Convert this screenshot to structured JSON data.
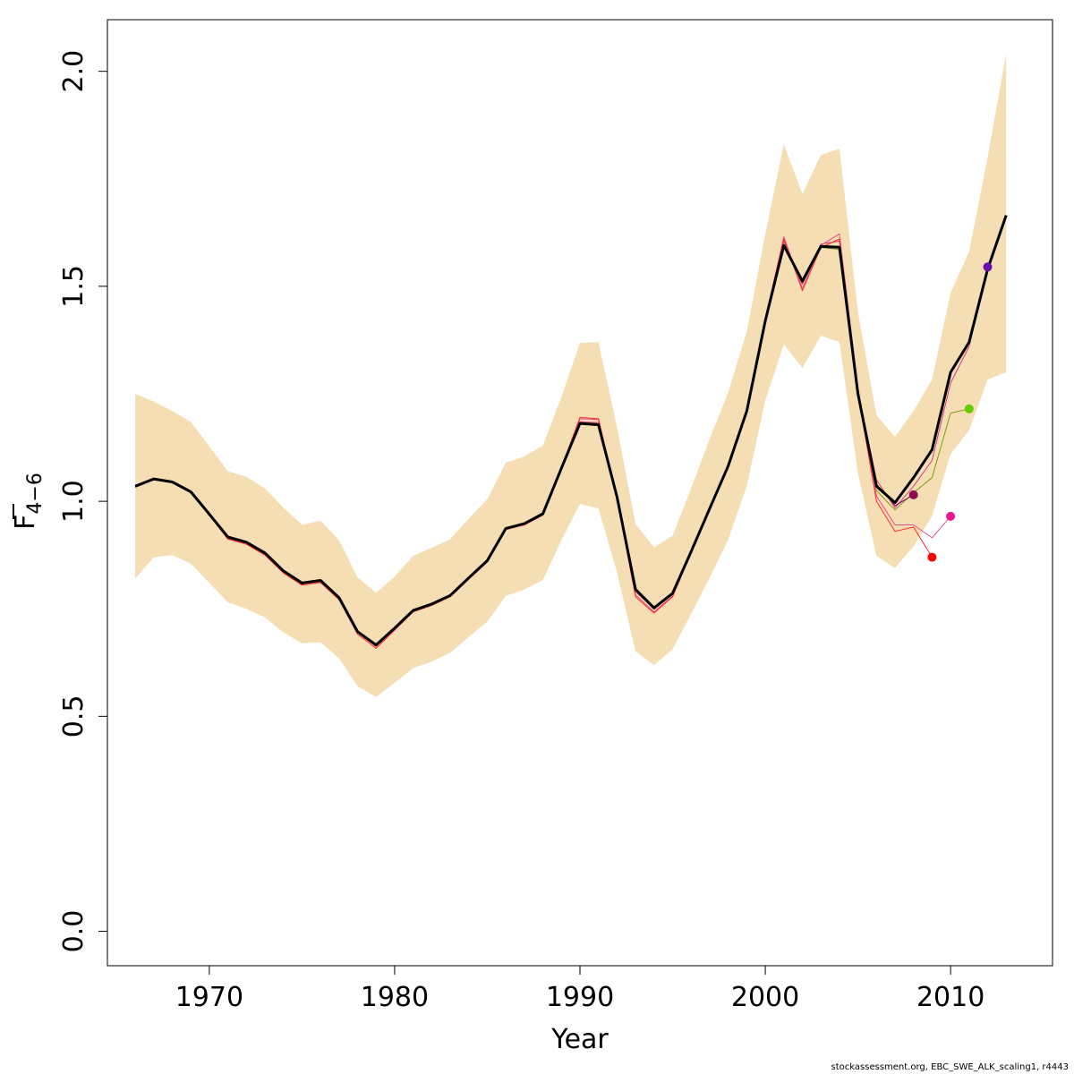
{
  "chart_data": {
    "type": "line",
    "title": "",
    "xlabel": "Year",
    "ylabel": {
      "main": "F",
      "sub": "4−6"
    },
    "xlim": [
      1964.5,
      2015.5
    ],
    "ylim": [
      -0.08,
      2.12
    ],
    "x_ticks": [
      1970,
      1980,
      1990,
      2000,
      2010
    ],
    "x_tick_labels": [
      "1970",
      "1980",
      "1990",
      "2000",
      "2010"
    ],
    "y_ticks": [
      0.0,
      0.5,
      1.0,
      1.5,
      2.0
    ],
    "y_tick_labels": [
      "0.0",
      "0.5",
      "1.0",
      "1.5",
      "2.0"
    ],
    "grid": false,
    "band_color": "#f5deb3",
    "confidence_band": {
      "x": [
        1966,
        1967,
        1968,
        1969,
        1970,
        1971,
        1972,
        1973,
        1974,
        1975,
        1976,
        1977,
        1978,
        1979,
        1980,
        1981,
        1982,
        1983,
        1984,
        1985,
        1986,
        1987,
        1988,
        1989,
        1990,
        1991,
        1992,
        1993,
        1994,
        1995,
        1996,
        1997,
        1998,
        1999,
        2000,
        2001,
        2002,
        2003,
        2004,
        2005,
        2006,
        2007,
        2008,
        2009,
        2010,
        2011,
        2012,
        2013
      ],
      "lower": [
        0.82,
        0.87,
        0.875,
        0.855,
        0.81,
        0.765,
        0.75,
        0.73,
        0.695,
        0.67,
        0.672,
        0.635,
        0.57,
        0.545,
        0.578,
        0.612,
        0.627,
        0.648,
        0.685,
        0.72,
        0.78,
        0.795,
        0.817,
        0.91,
        0.994,
        0.983,
        0.835,
        0.651,
        0.619,
        0.656,
        0.738,
        0.822,
        0.911,
        1.036,
        1.235,
        1.365,
        1.31,
        1.385,
        1.37,
        1.065,
        0.873,
        0.845,
        0.895,
        0.966,
        1.11,
        1.165,
        1.283,
        1.3
      ],
      "upper": [
        1.25,
        1.232,
        1.21,
        1.185,
        1.128,
        1.07,
        1.057,
        1.03,
        0.985,
        0.945,
        0.955,
        0.91,
        0.823,
        0.787,
        0.825,
        0.873,
        0.892,
        0.912,
        0.96,
        1.005,
        1.09,
        1.104,
        1.13,
        1.243,
        1.368,
        1.37,
        1.172,
        0.947,
        0.893,
        0.92,
        1.03,
        1.145,
        1.253,
        1.395,
        1.622,
        1.83,
        1.715,
        1.805,
        1.82,
        1.44,
        1.2,
        1.15,
        1.21,
        1.283,
        1.485,
        1.58,
        1.8,
        2.04
      ]
    },
    "series": [
      {
        "color": "#000000",
        "width": 3,
        "x": [
          1966,
          1967,
          1968,
          1969,
          1970,
          1971,
          1972,
          1973,
          1974,
          1975,
          1976,
          1977,
          1978,
          1979,
          1980,
          1981,
          1982,
          1983,
          1984,
          1985,
          1986,
          1987,
          1988,
          1989,
          1990,
          1991,
          1992,
          1993,
          1994,
          1995,
          1996,
          1997,
          1998,
          1999,
          2000,
          2001,
          2002,
          2003,
          2004,
          2005,
          2006,
          2007,
          2008,
          2009,
          2010,
          2011,
          2012,
          2013
        ],
        "values": [
          1.035,
          1.052,
          1.045,
          1.022,
          0.97,
          0.917,
          0.905,
          0.88,
          0.838,
          0.81,
          0.816,
          0.776,
          0.697,
          0.666,
          0.705,
          0.746,
          0.761,
          0.781,
          0.822,
          0.862,
          0.937,
          0.948,
          0.971,
          1.077,
          1.181,
          1.178,
          1.01,
          0.795,
          0.752,
          0.786,
          0.883,
          0.983,
          1.082,
          1.21,
          1.42,
          1.595,
          1.512,
          1.593,
          1.591,
          1.25,
          1.035,
          0.997,
          1.055,
          1.12,
          1.3,
          1.37,
          1.54,
          1.665
        ]
      },
      {
        "color": "#7a9b1a",
        "width": 1,
        "x": [
          1966,
          1967,
          1968,
          1969,
          1970,
          1971,
          1972,
          1973,
          1974,
          1975,
          1976,
          1977,
          1978,
          1979,
          1980,
          1981,
          1982,
          1983,
          1984,
          1985,
          1986,
          1987,
          1988,
          1989,
          1990,
          1991,
          1992,
          1993,
          1994,
          1995,
          1996,
          1997,
          1998,
          1999,
          2000,
          2001,
          2002,
          2003,
          2004,
          2005,
          2006,
          2007,
          2008,
          2009,
          2010,
          2011
        ],
        "values": [
          1.035,
          1.052,
          1.045,
          1.022,
          0.97,
          0.917,
          0.905,
          0.88,
          0.838,
          0.81,
          0.816,
          0.776,
          0.697,
          0.666,
          0.705,
          0.746,
          0.761,
          0.781,
          0.822,
          0.862,
          0.937,
          0.948,
          0.971,
          1.077,
          1.184,
          1.181,
          1.01,
          0.797,
          0.755,
          0.788,
          0.883,
          0.983,
          1.082,
          1.21,
          1.42,
          1.595,
          1.505,
          1.59,
          1.586,
          1.245,
          1.025,
          0.98,
          1.02,
          1.055,
          1.205,
          1.215
        ]
      },
      {
        "color": "#d23c8a",
        "width": 1,
        "x": [
          1966,
          1967,
          1968,
          1969,
          1970,
          1971,
          1972,
          1973,
          1974,
          1975,
          1976,
          1977,
          1978,
          1979,
          1980,
          1981,
          1982,
          1983,
          1984,
          1985,
          1986,
          1987,
          1988,
          1989,
          1990,
          1991,
          1992,
          1993,
          1994,
          1995,
          1996,
          1997,
          1998,
          1999,
          2000,
          2001,
          2002,
          2003,
          2004,
          2005,
          2006,
          2007,
          2008,
          2009,
          2010,
          2011,
          2012
        ],
        "values": [
          1.035,
          1.052,
          1.045,
          1.022,
          0.97,
          0.917,
          0.905,
          0.88,
          0.838,
          0.81,
          0.816,
          0.776,
          0.697,
          0.666,
          0.705,
          0.746,
          0.761,
          0.781,
          0.822,
          0.862,
          0.937,
          0.948,
          0.971,
          1.077,
          1.185,
          1.183,
          1.012,
          0.79,
          0.75,
          0.784,
          0.883,
          0.983,
          1.082,
          1.21,
          1.42,
          1.605,
          1.505,
          1.598,
          1.605,
          1.255,
          1.05,
          0.985,
          1.035,
          1.095,
          1.275,
          1.36,
          1.545
        ]
      },
      {
        "color": "#e0508f",
        "width": 1,
        "x": [
          1966,
          1967,
          1968,
          1969,
          1970,
          1971,
          1972,
          1973,
          1974,
          1975,
          1976,
          1977,
          1978,
          1979,
          1980,
          1981,
          1982,
          1983,
          1984,
          1985,
          1986,
          1987,
          1988,
          1989,
          1990,
          1991,
          1992,
          1993,
          1994,
          1995,
          1996,
          1997,
          1998,
          1999,
          2000,
          2001,
          2002,
          2003,
          2004,
          2005,
          2006,
          2007,
          2008,
          2009,
          2010
        ],
        "values": [
          1.033,
          1.05,
          1.043,
          1.02,
          0.968,
          0.914,
          0.902,
          0.877,
          0.835,
          0.807,
          0.813,
          0.773,
          0.694,
          0.662,
          0.702,
          0.744,
          0.759,
          0.779,
          0.82,
          0.86,
          0.935,
          0.946,
          0.97,
          1.08,
          1.192,
          1.19,
          1.008,
          0.782,
          0.743,
          0.78,
          0.882,
          0.983,
          1.082,
          1.21,
          1.425,
          1.615,
          1.495,
          1.595,
          1.622,
          1.265,
          1.012,
          0.945,
          0.945,
          0.915,
          0.965
        ]
      },
      {
        "color": "#ff2a2a",
        "width": 1,
        "x": [
          1966,
          1967,
          1968,
          1969,
          1970,
          1971,
          1972,
          1973,
          1974,
          1975,
          1976,
          1977,
          1978,
          1979,
          1980,
          1981,
          1982,
          1983,
          1984,
          1985,
          1986,
          1987,
          1988,
          1989,
          1990,
          1991,
          1992,
          1993,
          1994,
          1995,
          1996,
          1997,
          1998,
          1999,
          2000,
          2001,
          2002,
          2003,
          2004,
          2005,
          2006,
          2007,
          2008,
          2009
        ],
        "values": [
          1.033,
          1.05,
          1.043,
          1.02,
          0.968,
          0.912,
          0.9,
          0.875,
          0.833,
          0.805,
          0.811,
          0.771,
          0.691,
          0.658,
          0.7,
          0.743,
          0.758,
          0.778,
          0.819,
          0.859,
          0.934,
          0.945,
          0.968,
          1.078,
          1.195,
          1.192,
          1.005,
          0.778,
          0.74,
          0.778,
          0.88,
          0.982,
          1.08,
          1.21,
          1.425,
          1.61,
          1.49,
          1.59,
          1.61,
          1.25,
          1.0,
          0.93,
          0.94,
          0.87
        ]
      },
      {
        "color": "#880066",
        "width": 1,
        "x": [
          2006,
          2007,
          2008
        ],
        "values": [
          1.04,
          0.99,
          1.015
        ]
      }
    ],
    "points": [
      {
        "x": 2008,
        "y": 1.015,
        "color": "#8b0a50"
      },
      {
        "x": 2009,
        "y": 0.87,
        "color": "#ff0000"
      },
      {
        "x": 2010,
        "y": 0.965,
        "color": "#e81893"
      },
      {
        "x": 2011,
        "y": 1.215,
        "color": "#66cc00"
      },
      {
        "x": 2012,
        "y": 1.545,
        "color": "#6a0dad"
      }
    ]
  },
  "footer": {
    "credit": "stockassessment.org, EBC_SWE_ALK_scaling1, r4443"
  }
}
